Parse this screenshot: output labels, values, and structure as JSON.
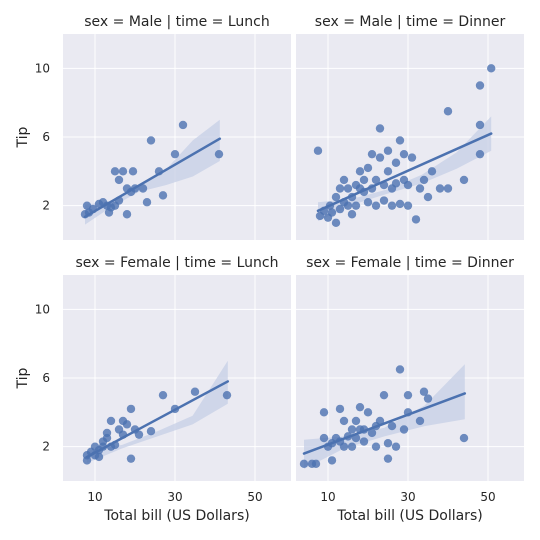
{
  "colors": {
    "accent": "#4c72b0",
    "panel_bg": "#eaeaf2",
    "grid": "#ffffff",
    "band": "#c6cfe6"
  },
  "chart_data": {
    "type": "scatter",
    "layout": "facet-grid 2x2, shared axes",
    "regression": true,
    "grid": true,
    "xlim": [
      2,
      59
    ],
    "ylim": [
      0,
      12
    ],
    "x_ticks": [
      10,
      30,
      50
    ],
    "y_ticks": [
      2,
      6,
      10
    ],
    "xlabel": "Total bill (US Dollars)",
    "ylabel": "Tip",
    "panels": [
      {
        "title": "sex = Male | time = Lunch",
        "fit": {
          "x": [
            7.5,
            41.2
          ],
          "y": [
            1.35,
            5.9
          ]
        },
        "band": {
          "lower": [
            0.9,
            1.95,
            2.8,
            3.2,
            3.7,
            4.6
          ],
          "upper": [
            2.05,
            2.25,
            3.15,
            4.1,
            5.8,
            7.0
          ]
        },
        "points": [
          [
            7.5,
            1.5
          ],
          [
            8.5,
            1.6
          ],
          [
            9.5,
            1.8
          ],
          [
            8,
            2
          ],
          [
            11,
            2.1
          ],
          [
            13,
            2
          ],
          [
            14,
            1.9
          ],
          [
            12,
            2.2
          ],
          [
            15,
            2
          ],
          [
            16,
            2.3
          ],
          [
            13.5,
            1.6
          ],
          [
            18,
            1.5
          ],
          [
            16,
            3.5
          ],
          [
            15,
            4
          ],
          [
            17,
            4
          ],
          [
            18,
            3
          ],
          [
            19,
            2.8
          ],
          [
            20,
            3
          ],
          [
            19.5,
            4
          ],
          [
            22,
            3
          ],
          [
            23,
            2.2
          ],
          [
            24,
            5.8
          ],
          [
            26,
            4
          ],
          [
            27,
            2.6
          ],
          [
            30,
            5
          ],
          [
            32,
            6.7
          ],
          [
            41,
            5
          ]
        ]
      },
      {
        "title": "sex = Male | time = Dinner",
        "fit": {
          "x": [
            7.5,
            50.8
          ],
          "y": [
            1.7,
            6.2
          ]
        },
        "band": {
          "lower": [
            1.1,
            2.05,
            2.7,
            3.3,
            4.15,
            5.2
          ],
          "upper": [
            2.2,
            2.4,
            2.95,
            3.8,
            5.1,
            7.2
          ]
        },
        "points": [
          [
            7.5,
            5.2
          ],
          [
            8,
            1.4
          ],
          [
            9,
            1.7
          ],
          [
            10,
            1.3
          ],
          [
            10.5,
            2
          ],
          [
            11,
            1.6
          ],
          [
            12,
            1
          ],
          [
            12,
            2.5
          ],
          [
            13,
            1.8
          ],
          [
            13,
            3
          ],
          [
            14,
            2.2
          ],
          [
            14,
            3.5
          ],
          [
            15,
            2
          ],
          [
            15,
            3
          ],
          [
            16,
            2.5
          ],
          [
            16,
            1.5
          ],
          [
            17,
            3.2
          ],
          [
            17,
            2
          ],
          [
            18,
            3
          ],
          [
            18,
            4
          ],
          [
            19,
            2.8
          ],
          [
            19,
            3.5
          ],
          [
            20,
            4.2
          ],
          [
            20,
            2.2
          ],
          [
            21,
            3
          ],
          [
            21,
            5
          ],
          [
            22,
            3.5
          ],
          [
            22,
            2
          ],
          [
            23,
            4.8
          ],
          [
            23,
            6.5
          ],
          [
            24,
            3.2
          ],
          [
            24,
            2.3
          ],
          [
            25,
            4
          ],
          [
            25,
            5.2
          ],
          [
            26,
            3
          ],
          [
            26,
            2
          ],
          [
            27,
            4.5
          ],
          [
            27,
            3.3
          ],
          [
            28,
            2.1
          ],
          [
            28,
            5.8
          ],
          [
            29,
            3.5
          ],
          [
            29,
            5
          ],
          [
            30,
            3.2
          ],
          [
            30,
            2
          ],
          [
            31,
            4.8
          ],
          [
            32,
            1.2
          ],
          [
            33,
            3
          ],
          [
            34,
            3.5
          ],
          [
            35,
            2.5
          ],
          [
            36,
            4
          ],
          [
            38,
            3
          ],
          [
            40,
            3
          ],
          [
            40,
            7.5
          ],
          [
            44,
            3.5
          ],
          [
            48,
            5
          ],
          [
            48,
            9
          ],
          [
            48,
            6.7
          ],
          [
            50.8,
            10
          ]
        ]
      },
      {
        "title": "sex = Female | time = Lunch",
        "fit": {
          "x": [
            8,
            43.2
          ],
          "y": [
            1.4,
            5.8
          ]
        },
        "band": {
          "lower": [
            1.05,
            1.9,
            2.6,
            3.3,
            4.5
          ],
          "upper": [
            1.75,
            2.1,
            2.9,
            3.8,
            7.0
          ]
        },
        "points": [
          [
            8,
            1.5
          ],
          [
            8,
            1.2
          ],
          [
            9,
            1.7
          ],
          [
            10,
            2
          ],
          [
            10,
            1.5
          ],
          [
            11,
            1.4
          ],
          [
            11,
            1.8
          ],
          [
            12,
            2
          ],
          [
            12,
            2.3
          ],
          [
            13,
            2.5
          ],
          [
            13,
            2.8
          ],
          [
            14,
            3.5
          ],
          [
            14,
            2
          ],
          [
            15,
            2.1
          ],
          [
            16,
            3
          ],
          [
            17,
            3.5
          ],
          [
            17,
            2.7
          ],
          [
            18,
            3.3
          ],
          [
            19,
            1.3
          ],
          [
            19,
            4.2
          ],
          [
            20,
            3
          ],
          [
            21,
            2.7
          ],
          [
            24,
            2.9
          ],
          [
            27,
            5
          ],
          [
            30,
            4.2
          ],
          [
            35,
            5.2
          ],
          [
            43,
            5
          ]
        ]
      },
      {
        "title": "sex = Female | time = Dinner",
        "fit": {
          "x": [
            4,
            44.2
          ],
          "y": [
            1.6,
            5.1
          ]
        },
        "band": {
          "lower": [
            0.7,
            1.9,
            2.6,
            3.2,
            3.6
          ],
          "upper": [
            2.4,
            2.6,
            3.1,
            4.4,
            6.8
          ]
        },
        "points": [
          [
            4,
            1
          ],
          [
            6,
            1
          ],
          [
            7,
            1
          ],
          [
            9,
            2.5
          ],
          [
            9,
            4
          ],
          [
            10,
            2
          ],
          [
            11,
            2.2
          ],
          [
            11,
            1.2
          ],
          [
            12,
            2.5
          ],
          [
            13,
            2.3
          ],
          [
            13,
            4.2
          ],
          [
            14,
            2
          ],
          [
            14,
            3.5
          ],
          [
            15,
            2.6
          ],
          [
            16,
            3
          ],
          [
            16,
            2
          ],
          [
            17,
            3.5
          ],
          [
            17,
            2.5
          ],
          [
            18,
            3
          ],
          [
            18,
            4.3
          ],
          [
            19,
            2.3
          ],
          [
            19,
            3
          ],
          [
            20,
            4
          ],
          [
            21,
            2.8
          ],
          [
            22,
            3.2
          ],
          [
            22,
            2
          ],
          [
            23,
            3.5
          ],
          [
            24,
            5
          ],
          [
            25,
            2.2
          ],
          [
            25,
            1.3
          ],
          [
            26,
            3.2
          ],
          [
            27,
            2
          ],
          [
            28,
            6.5
          ],
          [
            29,
            3
          ],
          [
            30,
            4
          ],
          [
            30,
            5
          ],
          [
            33,
            3.5
          ],
          [
            34,
            5.2
          ],
          [
            35,
            4.8
          ],
          [
            44,
            2.5
          ]
        ]
      }
    ]
  }
}
